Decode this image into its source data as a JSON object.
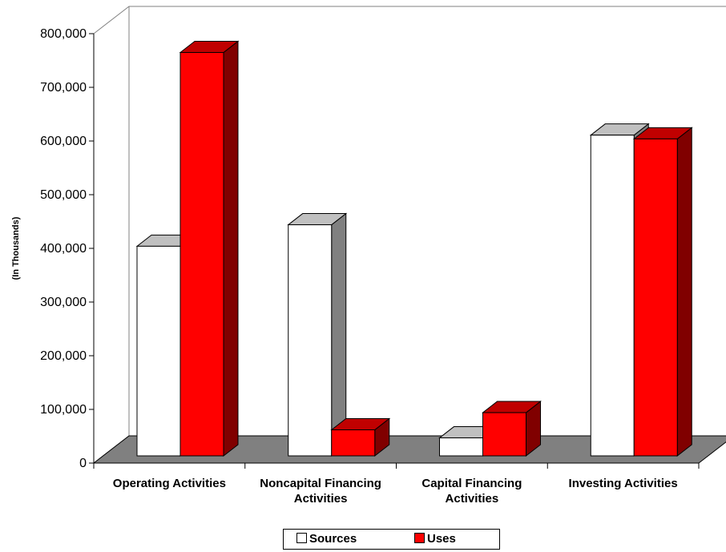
{
  "chart_data": {
    "type": "bar",
    "title": "",
    "xlabel": "",
    "ylabel": "(In Thousands)",
    "ylim": [
      0,
      800000
    ],
    "yticks": [
      0,
      100000,
      200000,
      300000,
      400000,
      500000,
      600000,
      700000,
      800000
    ],
    "ytick_labels": [
      "0",
      "100,000",
      "200,000",
      "300,000",
      "400,000",
      "500,000",
      "600,000",
      "700,000",
      "800,000"
    ],
    "categories": [
      [
        "Operating Activities"
      ],
      [
        "Noncapital Financing",
        "Activities"
      ],
      [
        "Capital Financing",
        "Activities"
      ],
      [
        "Investing Activities"
      ]
    ],
    "series": [
      {
        "name": "Sources",
        "color": "#ffffff",
        "values": [
          392000,
          432000,
          35000,
          599000
        ]
      },
      {
        "name": "Uses",
        "color": "#ff0000",
        "values": [
          753000,
          50000,
          82000,
          592000
        ]
      }
    ],
    "legend_position": "bottom",
    "three_d": true,
    "floor_color": "#808080"
  }
}
